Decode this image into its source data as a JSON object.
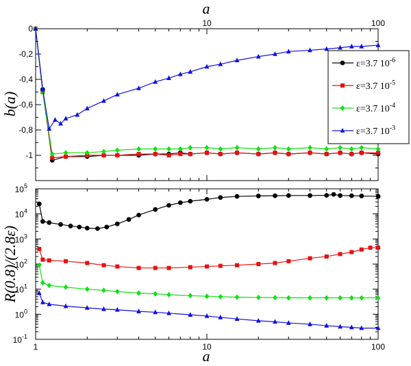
{
  "chart_data": [
    {
      "type": "line",
      "panel": "top",
      "xscale": "log",
      "xlim": [
        1,
        100
      ],
      "ylim": [
        -1.2,
        0
      ],
      "xlabel": "a",
      "ylabel": "b(a)",
      "top_xlabel": "a",
      "grid": false,
      "legend_position": "right",
      "x_ticks": [
        10,
        100
      ],
      "x_tick_labels": [
        "10",
        "100"
      ],
      "y_ticks": [
        0,
        -0.2,
        -0.4,
        -0.6,
        -0.8,
        -1
      ],
      "y_tick_labels": [
        "0",
        "-0,2",
        "-0,4",
        "-0,6",
        "-0,8",
        "-1"
      ],
      "series": [
        {
          "name": "ε=3.7 10",
          "exponent": "-6",
          "color": "#000000",
          "marker": "circle",
          "x": [
            1,
            1.1,
            1.25,
            1.5,
            2,
            2.5,
            3,
            4,
            5,
            6,
            7,
            8,
            10,
            12,
            15,
            20,
            25,
            30,
            40,
            50,
            60,
            70,
            80,
            100
          ],
          "y": [
            0,
            -0.48,
            -1.04,
            -1.01,
            -1.01,
            -1.0,
            -1.0,
            -1.0,
            -0.99,
            -0.99,
            -0.98,
            -0.99,
            -0.98,
            -0.99,
            -0.98,
            -0.99,
            -0.98,
            -0.99,
            -0.98,
            -0.99,
            -0.98,
            -0.99,
            -0.98,
            -0.99
          ]
        },
        {
          "name": "ε=3.7 10",
          "exponent": "-5",
          "color": "#e81010",
          "marker": "square",
          "x": [
            1,
            1.1,
            1.25,
            1.5,
            2,
            2.5,
            3,
            4,
            5,
            6,
            7,
            8,
            10,
            12,
            15,
            20,
            25,
            30,
            40,
            50,
            60,
            70,
            80,
            100
          ],
          "y": [
            0,
            -0.5,
            -1.02,
            -1.01,
            -1.0,
            -1.0,
            -1.0,
            -0.99,
            -0.99,
            -1.0,
            -0.99,
            -0.99,
            -0.98,
            -0.99,
            -0.98,
            -0.99,
            -0.98,
            -0.99,
            -0.98,
            -0.99,
            -0.98,
            -0.99,
            -0.98,
            -0.98
          ]
        },
        {
          "name": "ε=3.7 10",
          "exponent": "-4",
          "color": "#10e010",
          "marker": "diamond",
          "x": [
            1,
            1.1,
            1.25,
            1.5,
            2,
            2.5,
            3,
            4,
            5,
            6,
            7,
            8,
            10,
            12,
            15,
            20,
            25,
            30,
            40,
            50,
            60,
            70,
            80,
            100
          ],
          "y": [
            0,
            -0.5,
            -0.99,
            -0.98,
            -0.98,
            -0.97,
            -0.96,
            -0.95,
            -0.95,
            -0.95,
            -0.95,
            -0.94,
            -0.94,
            -0.95,
            -0.94,
            -0.95,
            -0.94,
            -0.95,
            -0.94,
            -0.95,
            -0.94,
            -0.95,
            -0.94,
            -0.95
          ]
        },
        {
          "name": "ε=3.7 10",
          "exponent": "-3",
          "color": "#1010e0",
          "marker": "triangle",
          "x": [
            1,
            1.1,
            1.2,
            1.3,
            1.4,
            1.5,
            1.75,
            2,
            2.5,
            3,
            4,
            5,
            6,
            7,
            8,
            10,
            12,
            15,
            20,
            25,
            30,
            40,
            50,
            60,
            70,
            80,
            100
          ],
          "y": [
            0,
            -0.48,
            -0.79,
            -0.72,
            -0.75,
            -0.71,
            -0.68,
            -0.63,
            -0.57,
            -0.52,
            -0.47,
            -0.42,
            -0.39,
            -0.36,
            -0.34,
            -0.3,
            -0.28,
            -0.25,
            -0.22,
            -0.2,
            -0.18,
            -0.17,
            -0.16,
            -0.15,
            -0.14,
            -0.14,
            -0.13
          ]
        }
      ]
    },
    {
      "type": "line",
      "panel": "bottom",
      "xscale": "log",
      "yscale": "log",
      "xlim": [
        1,
        100
      ],
      "ylim": [
        0.1,
        100000
      ],
      "xlabel": "a",
      "ylabel": "R(0.8)/(2.8ε)",
      "grid": false,
      "x_ticks": [
        1,
        10,
        100
      ],
      "x_tick_labels": [
        "1",
        "10",
        "100"
      ],
      "y_ticks": [
        0.1,
        1,
        10,
        100,
        1000,
        10000,
        100000
      ],
      "y_tick_mantissa": "10",
      "y_tick_exponents": [
        "-1",
        "0",
        "1",
        "2",
        "3",
        "4",
        "5"
      ],
      "series": [
        {
          "name": "ε=3.7 10",
          "exponent": "-6",
          "color": "#000000",
          "marker": "circle",
          "x": [
            1.05,
            1.1,
            1.2,
            1.4,
            1.6,
            1.8,
            2,
            2.3,
            2.6,
            3,
            3.5,
            4,
            5,
            6,
            7,
            8,
            10,
            12,
            15,
            20,
            25,
            30,
            40,
            50,
            55,
            60,
            70,
            80,
            100
          ],
          "y": [
            25000,
            5000,
            4500,
            3800,
            3300,
            3000,
            2700,
            2600,
            3000,
            4000,
            6000,
            9000,
            15000,
            22000,
            28000,
            32000,
            38000,
            45000,
            50000,
            52000,
            53000,
            54000,
            54000,
            55000,
            60000,
            54000,
            53000,
            52000,
            50000
          ]
        },
        {
          "name": "ε=3.7 10",
          "exponent": "-5",
          "color": "#e81010",
          "marker": "square",
          "x": [
            1.05,
            1.1,
            1.2,
            1.5,
            2,
            2.5,
            3,
            4,
            5,
            6,
            8,
            10,
            12,
            15,
            20,
            25,
            30,
            40,
            50,
            60,
            70,
            80,
            90,
            100
          ],
          "y": [
            400,
            150,
            140,
            130,
            110,
            90,
            80,
            70,
            70,
            70,
            75,
            80,
            85,
            90,
            100,
            110,
            130,
            170,
            200,
            250,
            300,
            380,
            450,
            450
          ]
        },
        {
          "name": "ε=3.7 10",
          "exponent": "-4",
          "color": "#10e010",
          "marker": "diamond",
          "x": [
            1.05,
            1.1,
            1.2,
            1.5,
            2,
            2.5,
            3,
            4,
            5,
            6,
            8,
            10,
            12,
            15,
            20,
            25,
            30,
            40,
            50,
            60,
            70,
            80,
            100
          ],
          "y": [
            90,
            18,
            14,
            12,
            10,
            9,
            8,
            7,
            6.5,
            6,
            5.5,
            5.2,
            5,
            4.8,
            4.7,
            4.6,
            4.5,
            4.5,
            4.5,
            4.5,
            4.5,
            4.5,
            4.5
          ]
        },
        {
          "name": "ε=3.7 10",
          "exponent": "-3",
          "color": "#1010e0",
          "marker": "triangle",
          "x": [
            1.05,
            1.1,
            1.2,
            1.5,
            2,
            2.5,
            3,
            4,
            5,
            6,
            8,
            10,
            12,
            15,
            20,
            25,
            30,
            40,
            50,
            60,
            70,
            80,
            100
          ],
          "y": [
            7,
            3,
            2.5,
            2.1,
            1.8,
            1.6,
            1.5,
            1.3,
            1.2,
            1.1,
            0.95,
            0.85,
            0.75,
            0.65,
            0.55,
            0.5,
            0.45,
            0.4,
            0.35,
            0.32,
            0.3,
            0.28,
            0.28
          ]
        }
      ]
    }
  ]
}
